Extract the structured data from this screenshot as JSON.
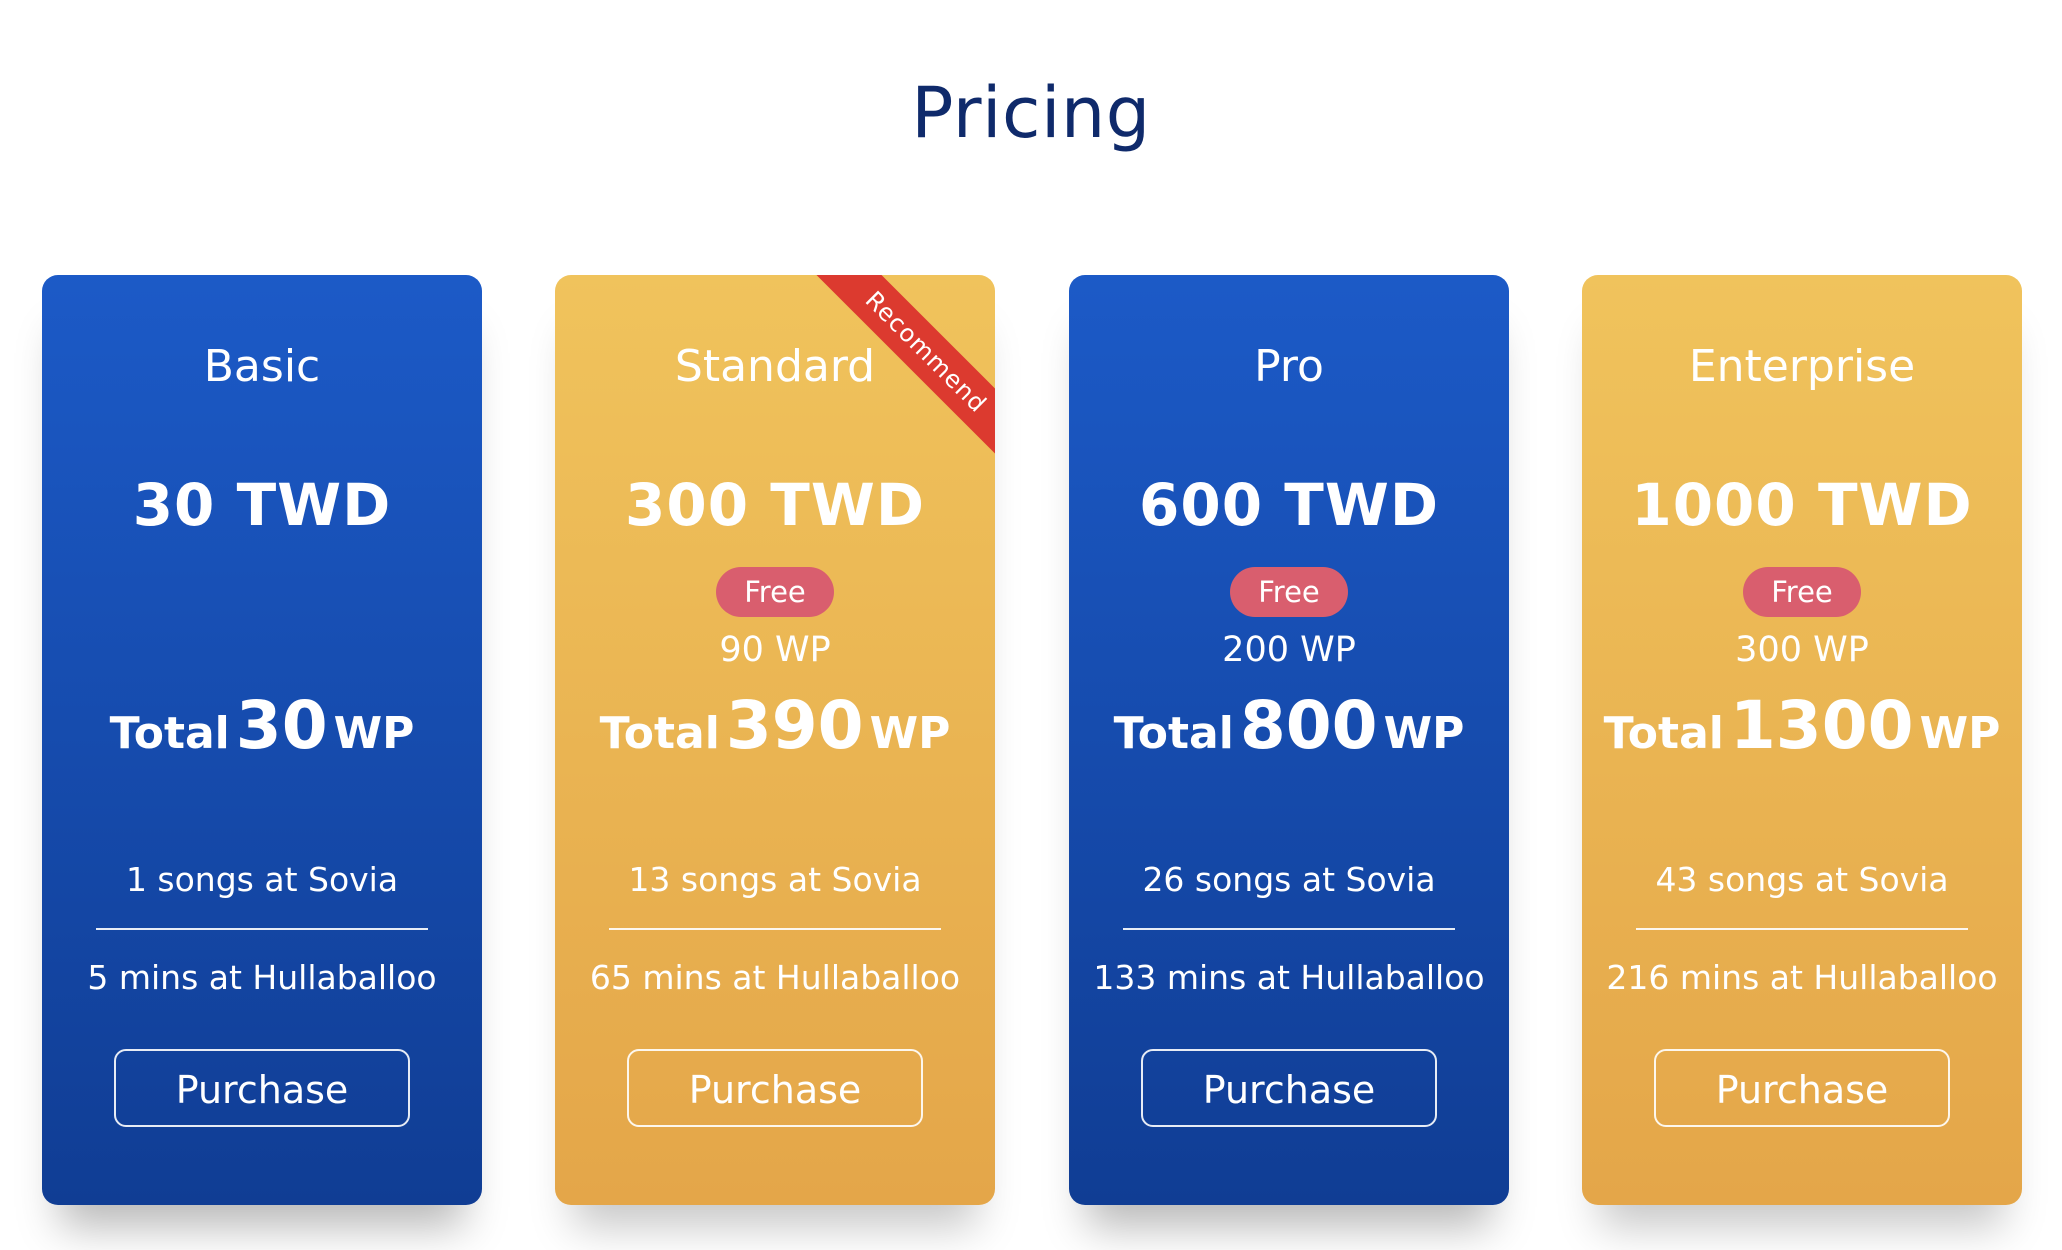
{
  "title": "Pricing",
  "colors": {
    "title": "#0f2a6b",
    "blue_card": "#1c5ac7",
    "gold_card": "#f0c35c",
    "free_badge": "#d95e6e",
    "ribbon": "#dc3a2f"
  },
  "plans": [
    {
      "name": "Basic",
      "price": "30 TWD",
      "free_label": "",
      "bonus": "",
      "total_label": "Total",
      "total_value": "30",
      "total_unit": "WP",
      "songs": "1 songs at Sovia",
      "mins": "5 mins at Hullaballoo",
      "button": "Purchase",
      "theme": "blue"
    },
    {
      "name": "Standard",
      "price": "300 TWD",
      "free_label": "Free",
      "bonus": "90 WP",
      "total_label": "Total",
      "total_value": "390",
      "total_unit": "WP",
      "songs": "13 songs at Sovia",
      "mins": "65 mins at Hullaballoo",
      "button": "Purchase",
      "theme": "gold",
      "ribbon": "Recommend"
    },
    {
      "name": "Pro",
      "price": "600 TWD",
      "free_label": "Free",
      "bonus": "200 WP",
      "total_label": "Total",
      "total_value": "800",
      "total_unit": "WP",
      "songs": "26 songs at Sovia",
      "mins": "133 mins at Hullaballoo",
      "button": "Purchase",
      "theme": "blue"
    },
    {
      "name": "Enterprise",
      "price": "1000 TWD",
      "free_label": "Free",
      "bonus": "300 WP",
      "total_label": "Total",
      "total_value": "1300",
      "total_unit": "WP",
      "songs": "43 songs at Sovia",
      "mins": "216 mins at Hullaballoo",
      "button": "Purchase",
      "theme": "gold"
    }
  ]
}
